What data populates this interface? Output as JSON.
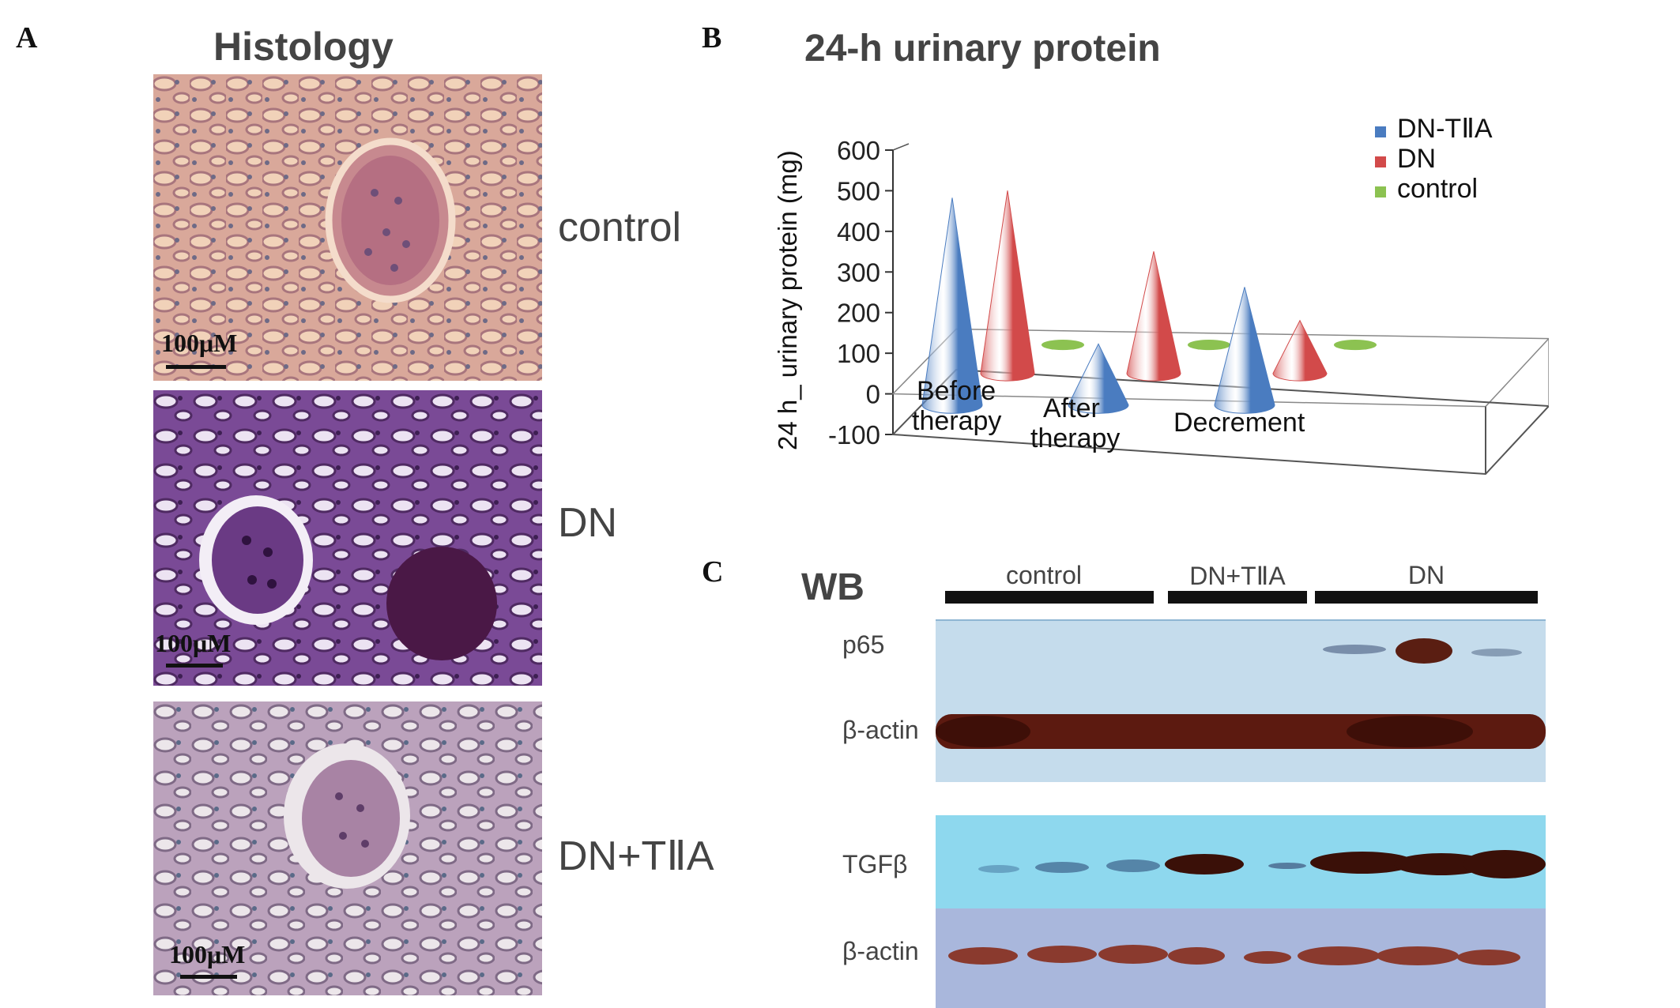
{
  "panels": {
    "a": "A",
    "b": "B",
    "c": "C"
  },
  "histology": {
    "title": "Histology",
    "scale_label": "100μM",
    "rows": [
      {
        "label": "control",
        "stain": "light-pink"
      },
      {
        "label": "DN",
        "stain": "deep-purple"
      },
      {
        "label": "DN+TⅡA",
        "stain": "pale-lilac"
      }
    ]
  },
  "chart_data": {
    "type": "bar",
    "subtype": "3d-cone",
    "title": "24-h urinary protein",
    "xlabel": "",
    "ylabel": "24 h_ urinary protein (mg)",
    "ylim": [
      -100,
      600
    ],
    "yticks": [
      600,
      500,
      400,
      300,
      200,
      100,
      0,
      -100
    ],
    "categories": [
      "Before therapy",
      "After therapy",
      "Decrement"
    ],
    "category_lines": [
      [
        "Before",
        "therapy"
      ],
      [
        "After",
        "therapy"
      ],
      [
        "Decrement"
      ]
    ],
    "series": [
      {
        "name": "DN-TⅡA",
        "color": "#4a7cc0",
        "values": [
          510,
          150,
          290
        ]
      },
      {
        "name": "DN",
        "color": "#d24a4a",
        "values": [
          450,
          300,
          130
        ]
      },
      {
        "name": "control",
        "color": "#8cc251",
        "values": [
          0,
          0,
          0
        ]
      }
    ],
    "legend": "top-right",
    "grid": false
  },
  "western_blot": {
    "title": "WB",
    "groups": [
      {
        "label": "control"
      },
      {
        "label": "DN+TⅡA"
      },
      {
        "label": "DN"
      }
    ],
    "rows": [
      {
        "label": "p65"
      },
      {
        "label": "β-actin"
      },
      {
        "label": "TGFβ"
      },
      {
        "label": "β-actin"
      }
    ]
  }
}
